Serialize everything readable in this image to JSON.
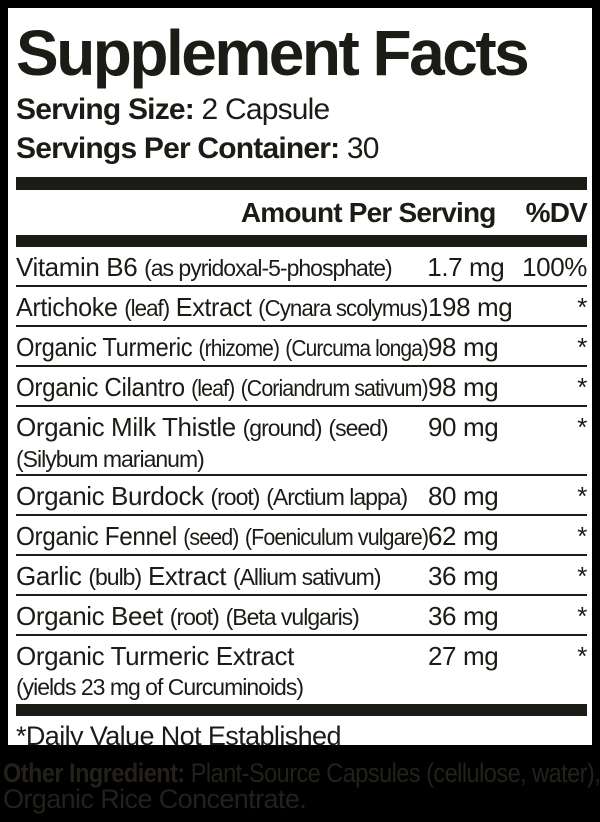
{
  "label": {
    "title": "Supplement Facts",
    "serving_size": {
      "label": "Serving Size:",
      "value": "2 Capsule"
    },
    "servings_per_container": {
      "label": "Servings Per Container:",
      "value": "30"
    },
    "columns": {
      "amount": "Amount Per Serving",
      "dv": "%DV"
    },
    "rows": [
      {
        "name": "Vitamin B6 (as pyridoxal-5-phosphate)",
        "amount": "1.7 mg",
        "dv": "100%"
      },
      {
        "name": "Artichoke (leaf) Extract (Cynara scolymus)",
        "amount": "198 mg",
        "dv": "*"
      },
      {
        "name": "Organic Turmeric (rhizome) (Curcuma longa)",
        "amount": "98 mg",
        "dv": "*"
      },
      {
        "name": "Organic Cilantro (leaf) (Coriandrum sativum)",
        "amount": "98 mg",
        "dv": "*"
      },
      {
        "name": "Organic Milk Thistle (ground) (seed)",
        "name_line2": "(Silybum marianum)",
        "amount": "90 mg",
        "dv": "*"
      },
      {
        "name": "Organic Burdock (root) (Arctium lappa)",
        "amount": "80 mg",
        "dv": "*"
      },
      {
        "name": "Organic Fennel (seed) (Foeniculum vulgare)",
        "amount": "62 mg",
        "dv": "*"
      },
      {
        "name": "Garlic (bulb) Extract (Allium sativum)",
        "amount": "36 mg",
        "dv": "*"
      },
      {
        "name": "Organic Beet (root) (Beta vulgaris)",
        "amount": "36 mg",
        "dv": "*"
      },
      {
        "name": "Organic Turmeric Extract",
        "name_line2": "(yields 23 mg of Curcuminoids)",
        "amount": "27 mg",
        "dv": "*"
      }
    ],
    "footnote": "*Daily Value Not Established",
    "other_ingredient": {
      "label": "Other Ingredient:",
      "line1": "Plant-Source Capsules (cellulose, water),",
      "line2": "Organic Rice Concentrate."
    },
    "colors": {
      "ink": "#1d1b16",
      "panel_bg": "#ffffff",
      "page_bg": "#000000",
      "other_text": "#23211a"
    }
  }
}
